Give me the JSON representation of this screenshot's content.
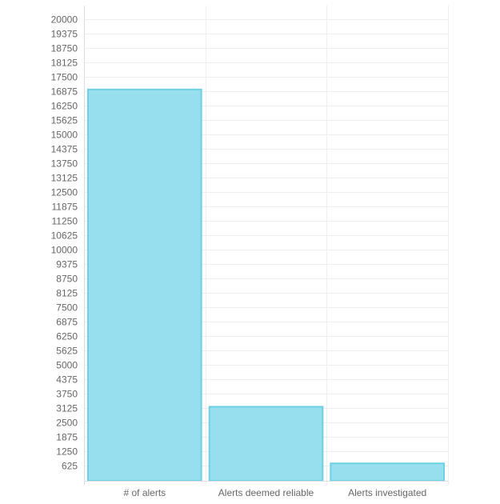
{
  "chart_data": {
    "type": "bar",
    "categories": [
      "# of alerts",
      "Alerts deemed reliable",
      "Alerts investigated"
    ],
    "values": [
      16950,
      3180,
      720
    ],
    "ylim": [
      0,
      20000
    ],
    "ytick_step": 625,
    "yticks": [
      "625",
      "1250",
      "1875",
      "2500",
      "3125",
      "3750",
      "4375",
      "5000",
      "5625",
      "6250",
      "6875",
      "7500",
      "8125",
      "8750",
      "9375",
      "10000",
      "10625",
      "11250",
      "11875",
      "12500",
      "13125",
      "13750",
      "14375",
      "15000",
      "15625",
      "16250",
      "16875",
      "17500",
      "18125",
      "18750",
      "19375",
      "20000"
    ],
    "grid": true,
    "legend": "none",
    "colors": {
      "bar_fill": "#97deee",
      "bar_stroke": "#6dd0e4",
      "grid": "#eeeeee",
      "axis": "#dddddd",
      "tick_text": "#666666"
    }
  }
}
